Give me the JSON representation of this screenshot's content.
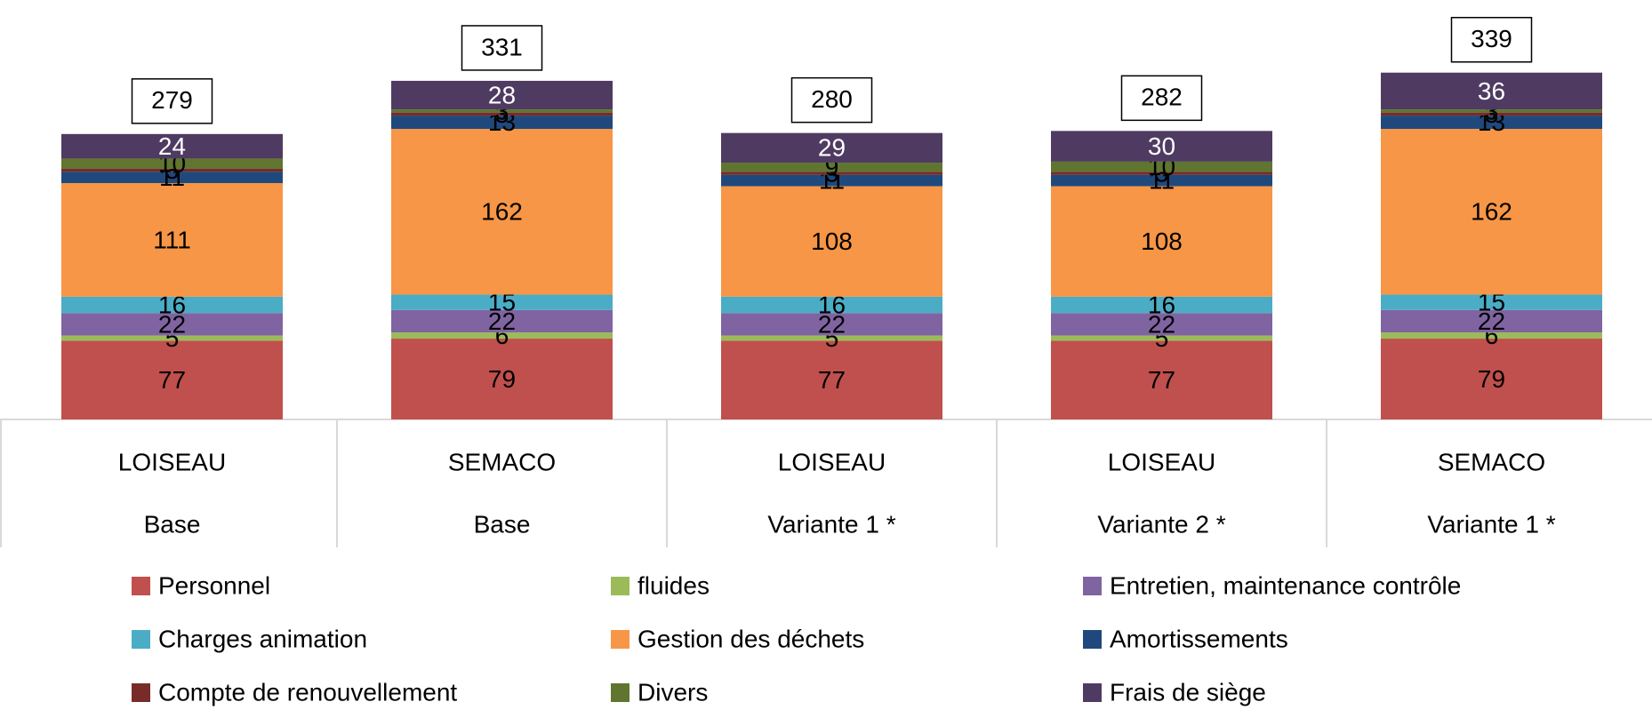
{
  "chart_data": {
    "type": "stacked_bar",
    "categories": [
      [
        "LOISEAU",
        "Base"
      ],
      [
        "SEMACO",
        "Base"
      ],
      [
        "LOISEAU",
        "Variante 1 *"
      ],
      [
        "LOISEAU",
        "Variante 2 *"
      ],
      [
        "SEMACO",
        "Variante 1 *"
      ]
    ],
    "series": [
      {
        "name": "Personnel",
        "color": "#c0504d",
        "values": [
          77,
          79,
          77,
          77,
          79
        ]
      },
      {
        "name": "fluides",
        "color": "#9bbb59",
        "values": [
          5,
          6,
          5,
          5,
          6
        ]
      },
      {
        "name": "Entretien, maintenance contrôle",
        "color": "#8064a2",
        "values": [
          22,
          22,
          22,
          22,
          22
        ]
      },
      {
        "name": "Charges animation",
        "color": "#4bacc6",
        "values": [
          16,
          15,
          16,
          16,
          15
        ]
      },
      {
        "name": "Gestion des déchets",
        "color": "#f79646",
        "values": [
          111,
          162,
          108,
          108,
          162
        ]
      },
      {
        "name": "Amortissements",
        "color": "#1f497d",
        "values": [
          11,
          13,
          11,
          11,
          13
        ]
      },
      {
        "name": "Compte de renouvellement",
        "color": "#772c2a",
        "values": [
          3,
          3,
          3,
          3,
          3
        ]
      },
      {
        "name": "Divers",
        "color": "#5f7530",
        "values": [
          10,
          3,
          9,
          10,
          3
        ]
      },
      {
        "name": "Frais de siège",
        "color": "#4f3b62",
        "values": [
          24,
          28,
          29,
          30,
          36
        ]
      }
    ],
    "totals": [
      279,
      331,
      280,
      282,
      339
    ],
    "ylim": [
      0,
      410
    ],
    "legend": "bottom"
  }
}
